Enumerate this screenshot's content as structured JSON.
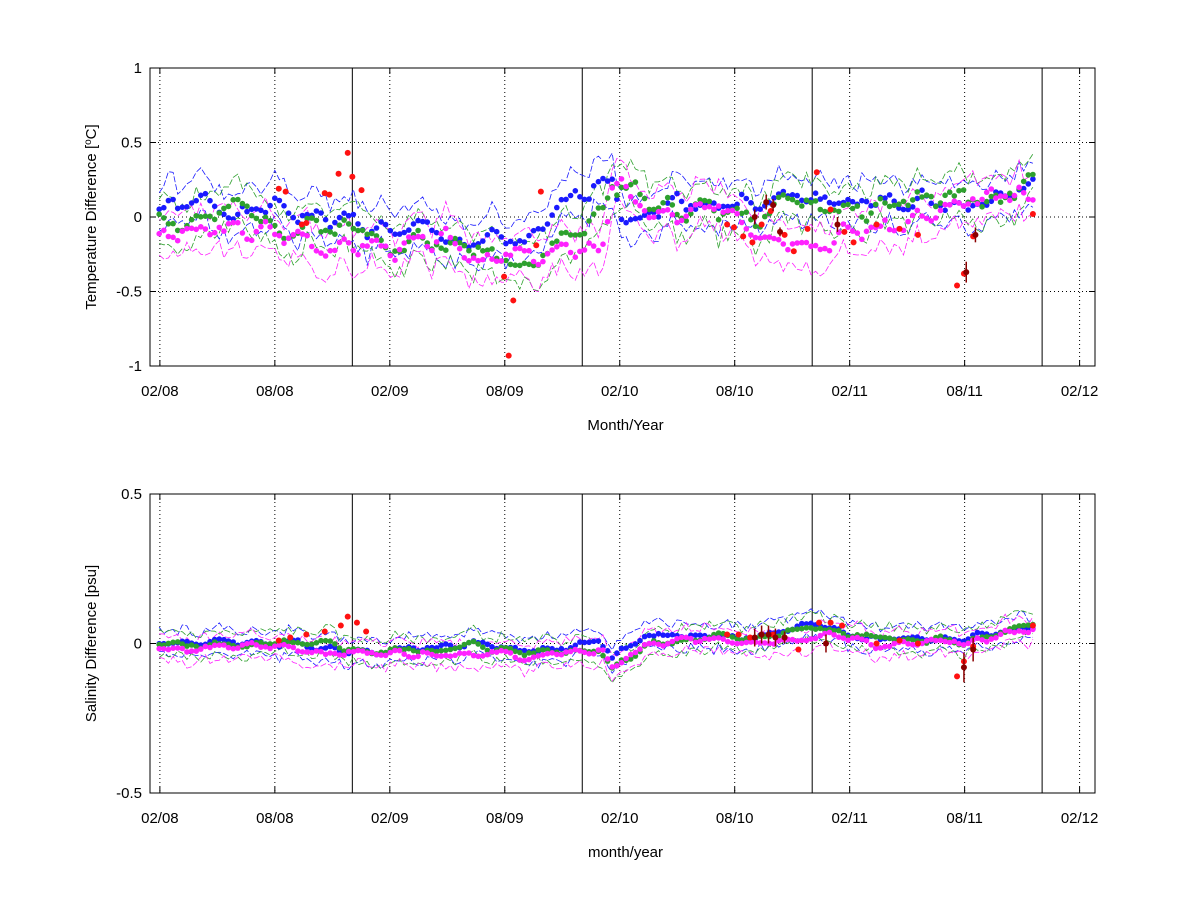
{
  "colors": {
    "blue": "#1a1aff",
    "green": "#2ea02e",
    "magenta": "#ff22ff",
    "red": "#ff1111",
    "darkred": "#8b0000",
    "axis": "#000000",
    "grid": "#000000"
  },
  "chart_data": [
    {
      "type": "scatter",
      "ylabel_pre": "Temperature Difference [",
      "ylabel_sup": "o",
      "ylabel_post": "C]",
      "xlabel": "Month/Year",
      "xlim": [
        2008.04,
        2012.15
      ],
      "ylim": [
        -1,
        1
      ],
      "yticks": [
        -1,
        -0.5,
        0,
        0.5,
        1
      ],
      "ytick_labels": [
        "-1",
        "-0.5",
        "0",
        "0.5",
        "1"
      ],
      "xticks": [
        2008.083,
        2008.583,
        2009.083,
        2009.583,
        2010.083,
        2010.583,
        2011.083,
        2011.583,
        2012.083
      ],
      "xtick_labels": [
        "02/08",
        "08/08",
        "02/09",
        "08/09",
        "02/10",
        "08/10",
        "02/11",
        "08/11",
        "02/12"
      ],
      "vlines": [
        2008.92,
        2009.92,
        2010.92,
        2011.92
      ],
      "grid": true,
      "series": [
        {
          "color": "blue",
          "mean": 0.07,
          "amp": 0.08,
          "seed": 1,
          "shape": [
            [
              2008.55,
              0.05
            ],
            [
              2009.2,
              -0.12
            ],
            [
              2009.45,
              -0.2
            ],
            [
              2009.7,
              -0.2
            ],
            [
              2010.05,
              0.3
            ],
            [
              2010.1,
              0.05
            ],
            [
              2010.4,
              0.12
            ],
            [
              2010.7,
              0.12
            ],
            [
              2011.5,
              0.08
            ],
            [
              2011.7,
              0.15
            ],
            [
              2011.85,
              0.22
            ]
          ]
        },
        {
          "color": "green",
          "mean": 0.02,
          "amp": 0.09,
          "seed": 2,
          "shape": [
            [
              2008.55,
              0.0
            ],
            [
              2009.2,
              -0.12
            ],
            [
              2009.45,
              -0.22
            ],
            [
              2009.7,
              -0.25
            ],
            [
              2010.0,
              0.0
            ],
            [
              2010.05,
              0.2
            ],
            [
              2010.2,
              0.1
            ],
            [
              2010.7,
              0.05
            ],
            [
              2011.2,
              0.05
            ],
            [
              2011.7,
              0.1
            ],
            [
              2011.85,
              0.18
            ]
          ]
        },
        {
          "color": "magenta",
          "mean": -0.05,
          "amp": 0.09,
          "seed": 3,
          "shape": [
            [
              2008.55,
              -0.12
            ],
            [
              2009.2,
              -0.2
            ],
            [
              2009.45,
              -0.25
            ],
            [
              2009.7,
              -0.3
            ],
            [
              2010.0,
              -0.2
            ],
            [
              2010.05,
              0.25
            ],
            [
              2010.2,
              0.0
            ],
            [
              2010.7,
              -0.02
            ],
            [
              2011.2,
              -0.05
            ],
            [
              2011.7,
              0.05
            ],
            [
              2011.85,
              0.1
            ]
          ]
        }
      ],
      "series_range": [
        2008.08,
        2011.88
      ],
      "band_width": 0.14,
      "red_points": [
        {
          "x": 2008.6,
          "y": 0.19
        },
        {
          "x": 2008.63,
          "y": 0.17
        },
        {
          "x": 2008.7,
          "y": -0.05
        },
        {
          "x": 2008.72,
          "y": -0.04
        },
        {
          "x": 2008.8,
          "y": 0.16
        },
        {
          "x": 2008.82,
          "y": 0.15
        },
        {
          "x": 2008.86,
          "y": 0.29
        },
        {
          "x": 2008.9,
          "y": 0.43
        },
        {
          "x": 2008.92,
          "y": 0.27
        },
        {
          "x": 2008.96,
          "y": 0.18
        },
        {
          "x": 2009.58,
          "y": -0.4
        },
        {
          "x": 2009.6,
          "y": -0.93
        },
        {
          "x": 2009.62,
          "y": -0.56
        },
        {
          "x": 2009.72,
          "y": -0.19
        },
        {
          "x": 2009.74,
          "y": 0.17
        },
        {
          "x": 2010.55,
          "y": -0.05
        },
        {
          "x": 2010.58,
          "y": -0.07
        },
        {
          "x": 2010.62,
          "y": -0.13
        },
        {
          "x": 2010.66,
          "y": -0.17
        },
        {
          "x": 2010.7,
          "y": -0.05
        },
        {
          "x": 2010.74,
          "y": 0.04
        },
        {
          "x": 2010.8,
          "y": -0.12
        },
        {
          "x": 2010.84,
          "y": -0.23
        },
        {
          "x": 2010.9,
          "y": -0.08
        },
        {
          "x": 2010.94,
          "y": 0.3
        },
        {
          "x": 2011.0,
          "y": 0.05
        },
        {
          "x": 2011.06,
          "y": -0.1
        },
        {
          "x": 2011.1,
          "y": -0.17
        },
        {
          "x": 2011.2,
          "y": -0.05
        },
        {
          "x": 2011.3,
          "y": -0.08
        },
        {
          "x": 2011.38,
          "y": -0.12
        },
        {
          "x": 2011.55,
          "y": -0.46
        },
        {
          "x": 2011.58,
          "y": -0.38
        },
        {
          "x": 2011.62,
          "y": -0.13
        },
        {
          "x": 2011.88,
          "y": 0.02
        }
      ],
      "dark_points": [
        {
          "x": 2010.67,
          "y": 0.0,
          "e": 0.05
        },
        {
          "x": 2010.72,
          "y": 0.1,
          "e": 0.05
        },
        {
          "x": 2010.75,
          "y": 0.08,
          "e": 0.04
        },
        {
          "x": 2010.78,
          "y": -0.1,
          "e": 0.03
        },
        {
          "x": 2011.03,
          "y": -0.05,
          "e": 0.05
        },
        {
          "x": 2011.59,
          "y": -0.37,
          "e": 0.07
        },
        {
          "x": 2011.63,
          "y": -0.12,
          "e": 0.05
        }
      ]
    },
    {
      "type": "scatter",
      "ylabel": "Salinity Difference [psu]",
      "xlabel": "month/year",
      "xlim": [
        2008.04,
        2012.15
      ],
      "ylim": [
        -0.5,
        0.5
      ],
      "yticks": [
        -0.5,
        0,
        0.5
      ],
      "ytick_labels": [
        "-0.5",
        "0",
        "0.5"
      ],
      "xticks": [
        2008.083,
        2008.583,
        2009.083,
        2009.583,
        2010.083,
        2010.583,
        2011.083,
        2011.583,
        2012.083
      ],
      "xtick_labels": [
        "02/08",
        "08/08",
        "02/09",
        "08/09",
        "02/10",
        "08/10",
        "02/11",
        "08/11",
        "02/12"
      ],
      "vlines": [
        2008.92,
        2009.92,
        2010.92,
        2011.92
      ],
      "grid": true,
      "series": [
        {
          "color": "blue",
          "mean": 0.005,
          "amp": 0.015,
          "seed": 4,
          "shape": [
            [
              2008.55,
              0.005
            ],
            [
              2009.0,
              -0.02
            ],
            [
              2009.45,
              0.0
            ],
            [
              2009.7,
              -0.02
            ],
            [
              2010.0,
              0.0
            ],
            [
              2010.05,
              -0.05
            ],
            [
              2010.2,
              0.02
            ],
            [
              2010.7,
              0.03
            ],
            [
              2010.95,
              0.06
            ],
            [
              2011.2,
              0.02
            ],
            [
              2011.6,
              0.02
            ],
            [
              2011.85,
              0.05
            ]
          ]
        },
        {
          "color": "green",
          "mean": -0.005,
          "amp": 0.015,
          "seed": 5,
          "shape": [
            [
              2008.55,
              -0.005
            ],
            [
              2009.0,
              -0.03
            ],
            [
              2009.45,
              -0.01
            ],
            [
              2009.7,
              -0.03
            ],
            [
              2010.0,
              -0.01
            ],
            [
              2010.05,
              -0.07
            ],
            [
              2010.2,
              0.0
            ],
            [
              2010.7,
              0.03
            ],
            [
              2010.95,
              0.05
            ],
            [
              2011.2,
              0.01
            ],
            [
              2011.6,
              0.0
            ],
            [
              2011.85,
              0.05
            ]
          ]
        },
        {
          "color": "magenta",
          "mean": -0.015,
          "amp": 0.015,
          "seed": 6,
          "shape": [
            [
              2008.55,
              -0.015
            ],
            [
              2009.0,
              -0.03
            ],
            [
              2009.45,
              -0.02
            ],
            [
              2009.7,
              -0.05
            ],
            [
              2010.0,
              -0.02
            ],
            [
              2010.05,
              -0.08
            ],
            [
              2010.2,
              -0.01
            ],
            [
              2010.7,
              0.02
            ],
            [
              2010.95,
              0.04
            ],
            [
              2011.2,
              0.0
            ],
            [
              2011.6,
              -0.01
            ],
            [
              2011.85,
              0.05
            ]
          ]
        }
      ],
      "series_range": [
        2008.08,
        2011.88
      ],
      "band_width": 0.04,
      "red_points": [
        {
          "x": 2008.6,
          "y": 0.01
        },
        {
          "x": 2008.65,
          "y": 0.02
        },
        {
          "x": 2008.72,
          "y": 0.03
        },
        {
          "x": 2008.8,
          "y": 0.04
        },
        {
          "x": 2008.87,
          "y": 0.06
        },
        {
          "x": 2008.9,
          "y": 0.09
        },
        {
          "x": 2008.94,
          "y": 0.07
        },
        {
          "x": 2008.98,
          "y": 0.04
        },
        {
          "x": 2010.55,
          "y": 0.03
        },
        {
          "x": 2010.6,
          "y": 0.03
        },
        {
          "x": 2010.65,
          "y": 0.02
        },
        {
          "x": 2010.7,
          "y": 0.03
        },
        {
          "x": 2010.75,
          "y": 0.03
        },
        {
          "x": 2010.8,
          "y": 0.02
        },
        {
          "x": 2010.86,
          "y": -0.02
        },
        {
          "x": 2010.95,
          "y": 0.07
        },
        {
          "x": 2011.0,
          "y": 0.07
        },
        {
          "x": 2011.05,
          "y": 0.06
        },
        {
          "x": 2011.2,
          "y": 0.0
        },
        {
          "x": 2011.3,
          "y": 0.01
        },
        {
          "x": 2011.38,
          "y": 0.0
        },
        {
          "x": 2011.55,
          "y": -0.11
        },
        {
          "x": 2011.58,
          "y": -0.06
        },
        {
          "x": 2011.62,
          "y": -0.01
        },
        {
          "x": 2011.88,
          "y": 0.06
        }
      ],
      "dark_points": [
        {
          "x": 2010.67,
          "y": 0.02,
          "e": 0.03
        },
        {
          "x": 2010.7,
          "y": 0.03,
          "e": 0.03
        },
        {
          "x": 2010.73,
          "y": 0.03,
          "e": 0.03
        },
        {
          "x": 2010.76,
          "y": 0.02,
          "e": 0.03
        },
        {
          "x": 2010.8,
          "y": 0.02,
          "e": 0.02
        },
        {
          "x": 2010.98,
          "y": 0.0,
          "e": 0.03
        },
        {
          "x": 2011.58,
          "y": -0.08,
          "e": 0.05
        },
        {
          "x": 2011.62,
          "y": -0.02,
          "e": 0.04
        }
      ]
    }
  ]
}
